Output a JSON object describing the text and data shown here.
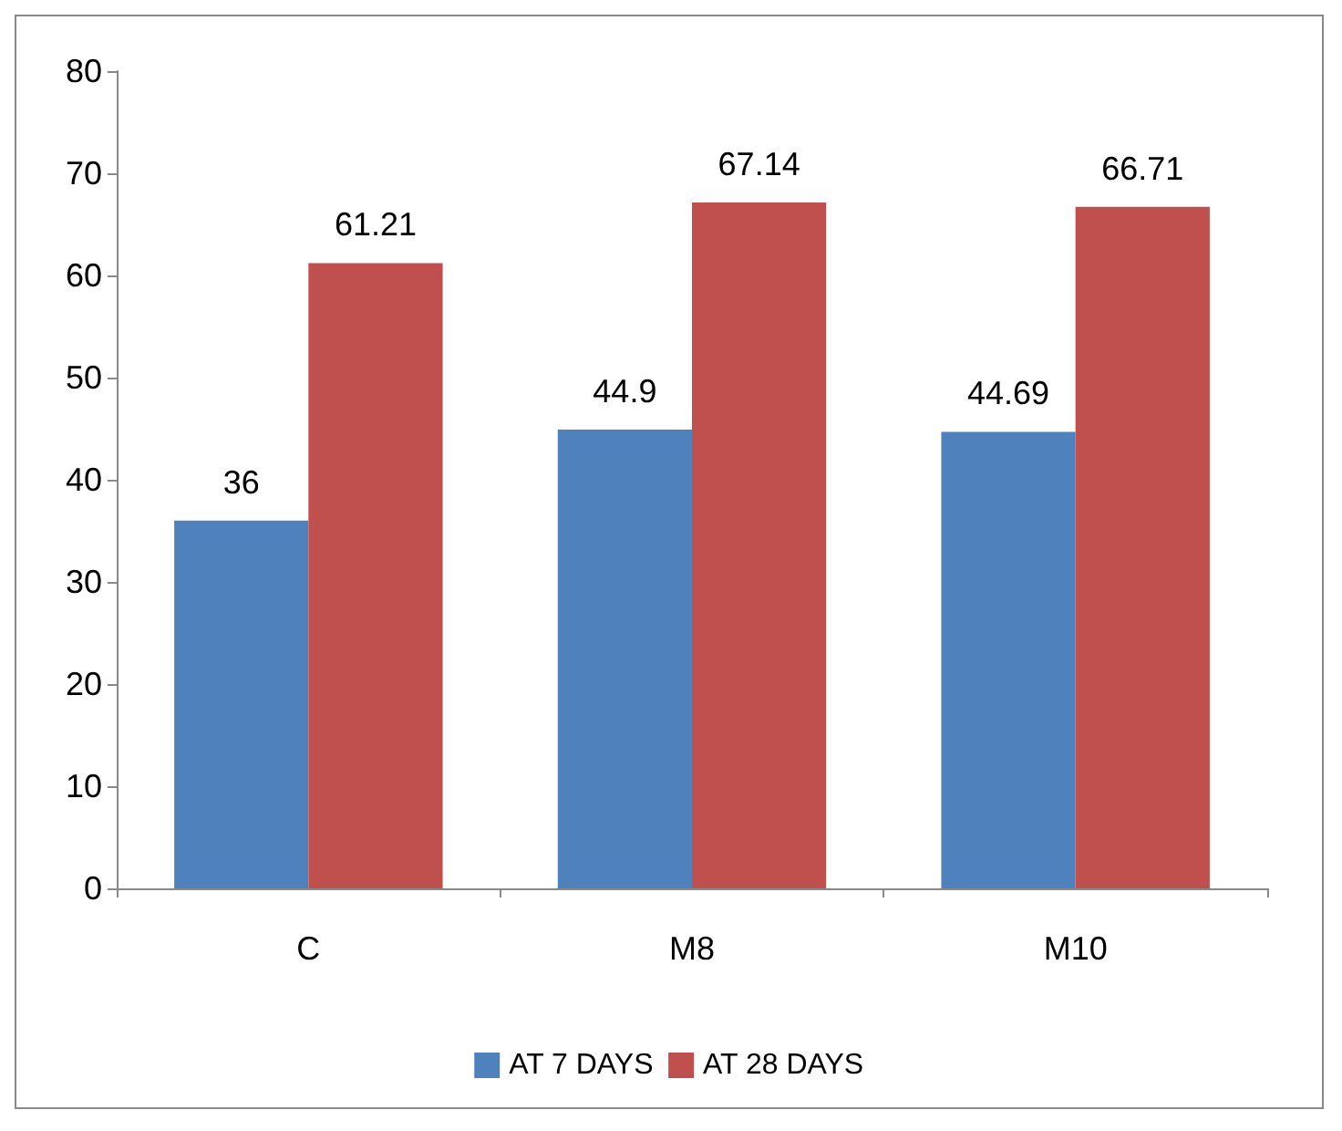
{
  "chart_data": {
    "type": "bar",
    "categories": [
      "C",
      "M8",
      "M10"
    ],
    "series": [
      {
        "name": "AT 7 DAYS",
        "color": "#4f81bd",
        "values": [
          36,
          44.9,
          44.69
        ]
      },
      {
        "name": "AT 28 DAYS",
        "color": "#c0504d",
        "values": [
          61.21,
          67.14,
          66.71
        ]
      }
    ],
    "ylim": [
      0,
      80
    ],
    "yticks": [
      0,
      10,
      20,
      30,
      40,
      50,
      60,
      70,
      80
    ],
    "data_labels": true,
    "legend": "bottom",
    "grid": false
  }
}
